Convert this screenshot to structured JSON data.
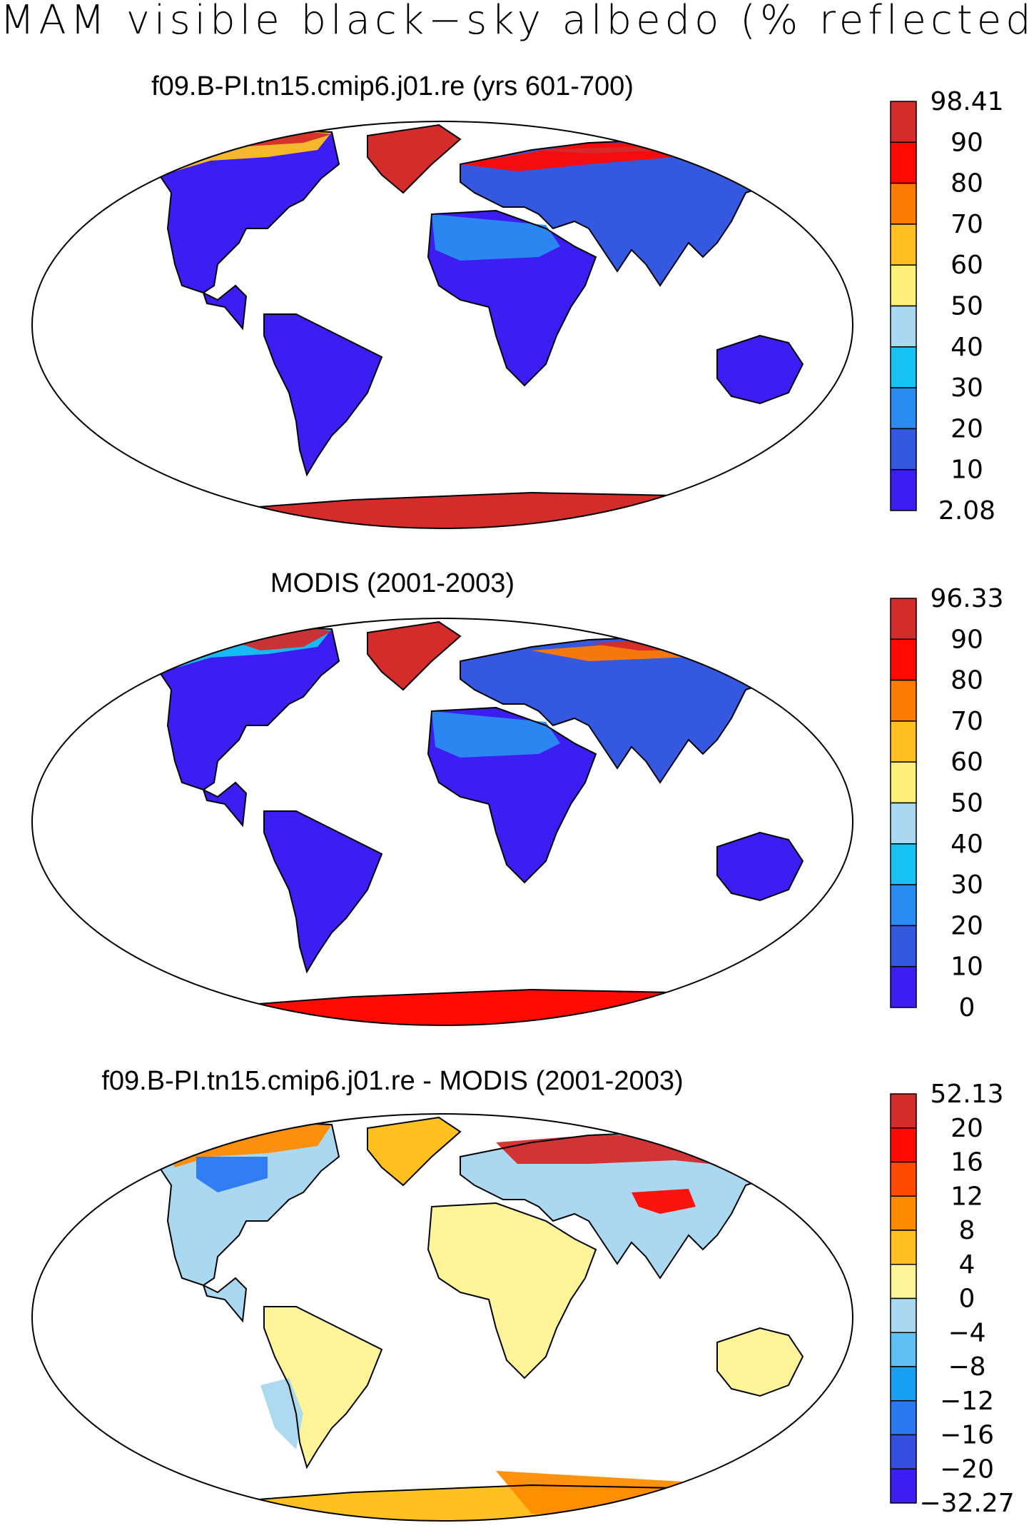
{
  "main_title": "MAM visible black−sky albedo (% reflected)",
  "chart_data": [
    {
      "type": "heatmap",
      "title": "f09.B-PI.tn15.cmip6.j01.re (yrs 601-700)",
      "projection": "Robinson (global)",
      "colorbar": {
        "labels": [
          "98.41",
          "90",
          "80",
          "70",
          "60",
          "50",
          "40",
          "30",
          "20",
          "10",
          "2.08"
        ],
        "colors": [
          "#d42b2b",
          "#ff0a00",
          "#ff7a00",
          "#ffc020",
          "#fff07a",
          "#a9d8f0",
          "#16c3f4",
          "#2a8cf0",
          "#3558e0",
          "#3c1df2"
        ]
      },
      "regions": [
        {
          "region": "Antarctica",
          "level": "98.41"
        },
        {
          "region": "Greenland",
          "level": "90-98"
        },
        {
          "region": "Arctic Siberia coast",
          "level": "80-98"
        },
        {
          "region": "North Africa / Sahara",
          "level": "20-40"
        },
        {
          "region": "Tropics / Southern continents",
          "level": "2-10"
        }
      ]
    },
    {
      "type": "heatmap",
      "title": "MODIS (2001-2003)",
      "projection": "Robinson (global)",
      "colorbar": {
        "labels": [
          "96.33",
          "90",
          "80",
          "70",
          "60",
          "50",
          "40",
          "30",
          "20",
          "10",
          "0"
        ],
        "colors": [
          "#d42b2b",
          "#ff0a00",
          "#ff7a00",
          "#ffc020",
          "#fff07a",
          "#a9d8f0",
          "#16c3f4",
          "#2a8cf0",
          "#3558e0",
          "#3c1df2"
        ]
      },
      "regions": [
        {
          "region": "Antarctica",
          "level": "90-96"
        },
        {
          "region": "Greenland",
          "level": "90-96"
        },
        {
          "region": "Arctic Siberia coast",
          "level": "50-90"
        },
        {
          "region": "North Africa / Sahara",
          "level": "20-40"
        },
        {
          "region": "Tropics / Southern continents",
          "level": "0-10"
        }
      ]
    },
    {
      "type": "heatmap",
      "title": "f09.B-PI.tn15.cmip6.j01.re - MODIS (2001-2003)",
      "projection": "Robinson (global)",
      "colorbar": {
        "labels": [
          "52.13",
          "20",
          "16",
          "12",
          "8",
          "4",
          "0",
          "−4",
          "−8",
          "−12",
          "−16",
          "−20",
          "−32.27"
        ],
        "colors": [
          "#d42b2b",
          "#ff0a00",
          "#ff4a00",
          "#ff8c00",
          "#ffc020",
          "#fff49a",
          "#a9d8f0",
          "#5fc0f4",
          "#16a0f4",
          "#2a78f0",
          "#3550e0",
          "#3c1df2"
        ]
      },
      "regions": [
        {
          "region": "Antarctica",
          "level": "4-12"
        },
        {
          "region": "Greenland",
          "level": "4-8"
        },
        {
          "region": "Arctic Siberia coast",
          "level": "20-52"
        },
        {
          "region": "North Africa / Sahara",
          "level": "0-4"
        },
        {
          "region": "Tropics / Southern continents",
          "level": "-4-4"
        }
      ]
    }
  ]
}
